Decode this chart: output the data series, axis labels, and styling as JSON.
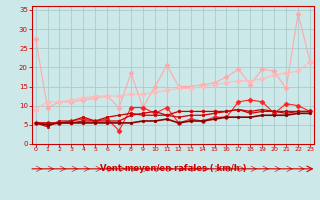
{
  "title": "",
  "xlabel": "Vent moyen/en rafales ( km/h )",
  "background_color": "#cce8e8",
  "grid_color": "#aacccc",
  "x": [
    0,
    1,
    2,
    3,
    4,
    5,
    6,
    7,
    8,
    9,
    10,
    11,
    12,
    13,
    14,
    15,
    16,
    17,
    18,
    19,
    20,
    21,
    22,
    23
  ],
  "series": [
    {
      "y": [
        27.5,
        9.5,
        11.0,
        11.0,
        11.5,
        12.0,
        12.5,
        9.5,
        18.5,
        9.5,
        15.0,
        20.5,
        15.0,
        15.0,
        15.5,
        16.0,
        17.5,
        19.5,
        15.5,
        19.5,
        19.0,
        14.5,
        34.0,
        21.5
      ],
      "color": "#ffaaaa",
      "marker": "D",
      "markersize": 2.5,
      "linewidth": 0.8,
      "zorder": 2
    },
    {
      "y": [
        9.0,
        11.0,
        11.0,
        11.5,
        12.0,
        12.5,
        12.5,
        12.5,
        13.0,
        13.0,
        13.5,
        14.0,
        14.5,
        14.5,
        15.0,
        15.5,
        16.0,
        16.5,
        16.5,
        17.0,
        18.0,
        18.5,
        19.0,
        21.5
      ],
      "color": "#ffbbbb",
      "marker": "D",
      "markersize": 2.5,
      "linewidth": 0.8,
      "zorder": 2
    },
    {
      "y": [
        5.5,
        5.5,
        5.5,
        6.0,
        6.5,
        6.0,
        6.5,
        3.5,
        9.5,
        9.5,
        8.0,
        9.5,
        5.5,
        6.5,
        6.0,
        7.0,
        7.0,
        11.0,
        11.5,
        11.0,
        8.0,
        10.5,
        10.0,
        8.5
      ],
      "color": "#ff2222",
      "marker": "D",
      "markersize": 2.5,
      "linewidth": 0.8,
      "zorder": 3
    },
    {
      "y": [
        5.5,
        4.5,
        6.0,
        6.0,
        7.0,
        6.0,
        7.0,
        7.5,
        8.0,
        7.5,
        7.5,
        7.5,
        7.0,
        7.5,
        7.5,
        8.0,
        8.5,
        9.0,
        8.0,
        8.5,
        8.5,
        8.0,
        8.5,
        8.5
      ],
      "color": "#cc0000",
      "marker": "s",
      "markersize": 2.0,
      "linewidth": 0.9,
      "zorder": 3
    },
    {
      "y": [
        5.5,
        5.5,
        5.5,
        5.5,
        6.0,
        6.0,
        6.0,
        6.0,
        7.5,
        8.0,
        8.5,
        7.5,
        8.5,
        8.5,
        8.5,
        8.5,
        8.5,
        9.0,
        8.5,
        9.0,
        8.5,
        8.5,
        8.5,
        8.5
      ],
      "color": "#cc0000",
      "marker": "o",
      "markersize": 2.0,
      "linewidth": 0.9,
      "zorder": 3
    },
    {
      "y": [
        5.5,
        5.0,
        5.5,
        5.5,
        5.5,
        5.5,
        5.5,
        5.5,
        5.5,
        6.0,
        6.0,
        6.5,
        5.5,
        6.0,
        6.0,
        6.5,
        7.0,
        7.0,
        7.0,
        7.5,
        7.5,
        7.5,
        8.0,
        8.0
      ],
      "color": "#880000",
      "marker": "o",
      "markersize": 1.8,
      "linewidth": 1.2,
      "zorder": 4
    }
  ],
  "ylim": [
    0,
    36
  ],
  "xlim": [
    -0.3,
    23.3
  ],
  "yticks": [
    0,
    5,
    10,
    15,
    20,
    25,
    30,
    35
  ],
  "xticks": [
    0,
    1,
    2,
    3,
    4,
    5,
    6,
    7,
    8,
    9,
    10,
    11,
    12,
    13,
    14,
    15,
    16,
    17,
    18,
    19,
    20,
    21,
    22,
    23
  ],
  "tick_color": "#cc0000",
  "label_color": "#cc0000",
  "axis_color": "#cc0000",
  "arrow_color": "#cc0000"
}
